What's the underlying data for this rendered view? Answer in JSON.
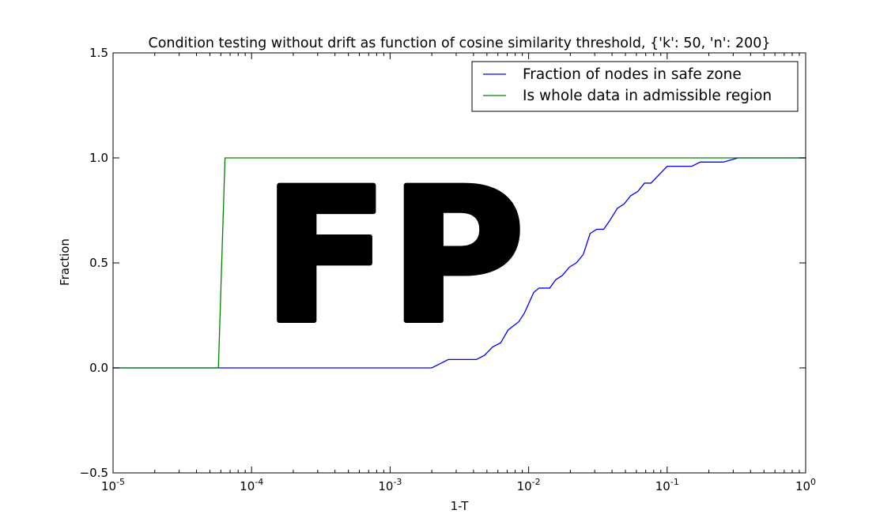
{
  "watermark_text": "FP",
  "chart_data": {
    "type": "line",
    "title": "Condition testing without drift as function of cosine similarity threshold, {'k': 50, 'n': 200}",
    "xlabel": "1-T",
    "ylabel": "Fraction",
    "xscale": "log",
    "xlim": [
      1e-05,
      1
    ],
    "ylim": [
      -0.5,
      1.5
    ],
    "x_tick_labels": [
      {
        "value": 1e-05,
        "base": "10",
        "exp": "-5"
      },
      {
        "value": 0.0001,
        "base": "10",
        "exp": "-4"
      },
      {
        "value": 0.001,
        "base": "10",
        "exp": "-3"
      },
      {
        "value": 0.01,
        "base": "10",
        "exp": "-2"
      },
      {
        "value": 0.1,
        "base": "10",
        "exp": "-1"
      },
      {
        "value": 1,
        "base": "10",
        "exp": "0"
      }
    ],
    "y_ticks": [
      -0.5,
      0.0,
      0.5,
      1.0,
      1.5
    ],
    "y_tick_labels": [
      "−0.5",
      "0.0",
      "0.5",
      "1.0",
      "1.5"
    ],
    "legend_position": "upper right",
    "grid": false,
    "series": [
      {
        "name": "Fraction of nodes in safe zone",
        "color": "#0000ff",
        "points": [
          [
            1e-05,
            0.0
          ],
          [
            0.002,
            0.0
          ],
          [
            0.00263,
            0.04
          ],
          [
            0.0042,
            0.04
          ],
          [
            0.0048,
            0.06
          ],
          [
            0.0055,
            0.1
          ],
          [
            0.0063,
            0.12
          ],
          [
            0.0071,
            0.18
          ],
          [
            0.0085,
            0.22
          ],
          [
            0.0093,
            0.26
          ],
          [
            0.0109,
            0.36
          ],
          [
            0.0119,
            0.38
          ],
          [
            0.0142,
            0.38
          ],
          [
            0.0157,
            0.42
          ],
          [
            0.0175,
            0.44
          ],
          [
            0.0197,
            0.48
          ],
          [
            0.0221,
            0.5
          ],
          [
            0.0248,
            0.54
          ],
          [
            0.0278,
            0.64
          ],
          [
            0.031,
            0.66
          ],
          [
            0.0348,
            0.66
          ],
          [
            0.0384,
            0.7
          ],
          [
            0.0437,
            0.76
          ],
          [
            0.0488,
            0.78
          ],
          [
            0.0546,
            0.82
          ],
          [
            0.0614,
            0.84
          ],
          [
            0.0686,
            0.88
          ],
          [
            0.0765,
            0.88
          ],
          [
            0.1,
            0.96
          ],
          [
            0.151,
            0.96
          ],
          [
            0.173,
            0.98
          ],
          [
            0.254,
            0.98
          ],
          [
            0.325,
            1.0
          ],
          [
            1,
            1.0
          ]
        ]
      },
      {
        "name": "Is whole data in admissible region",
        "color": "#008000",
        "points": [
          [
            1e-05,
            0.0
          ],
          [
            5.76e-05,
            0.0
          ],
          [
            6.43e-05,
            1.0
          ],
          [
            1,
            1.0
          ]
        ]
      }
    ]
  }
}
